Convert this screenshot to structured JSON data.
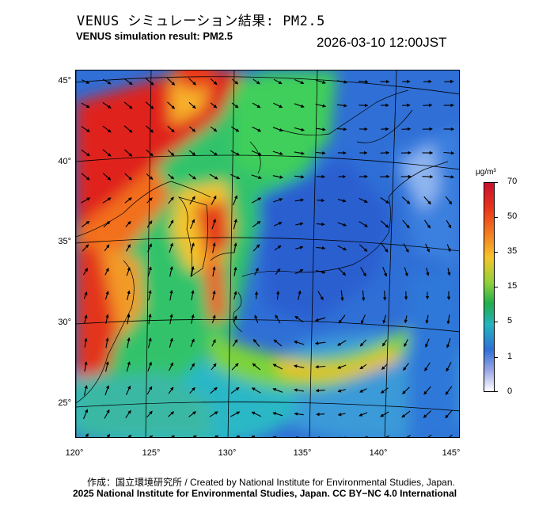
{
  "header": {
    "title_jp": "VENUS シミュレーション結果: PM2.5",
    "title_en": "VENUS simulation result: PM2.5",
    "timestamp": "2026-03-10 12:00JST"
  },
  "map": {
    "lat_labels": [
      "45°",
      "40°",
      "35°",
      "30°",
      "25°"
    ],
    "lon_labels": [
      "120°",
      "125°",
      "130°",
      "135°",
      "140°",
      "145°"
    ],
    "region": "East Asia / Japan",
    "wind_vectors": "shown"
  },
  "colorbar": {
    "unit": "μg/m³",
    "levels": [
      "70",
      "50",
      "35",
      "15",
      "5",
      "1",
      "0"
    ],
    "colors": [
      "#d7301f",
      "#f46d43",
      "#fdae61",
      "#fee08b",
      "#a6d96a",
      "#1a9850",
      "#66c2a5",
      "#3288bd",
      "#5e4fa2",
      "#ffffff"
    ]
  },
  "footer": {
    "credit": "作成：国立環境研究所 / Created by National Institute for Environmental Studies, Japan.",
    "license": "2025 National Institute for Environmental Studies, Japan. CC BY−NC 4.0 International"
  }
}
